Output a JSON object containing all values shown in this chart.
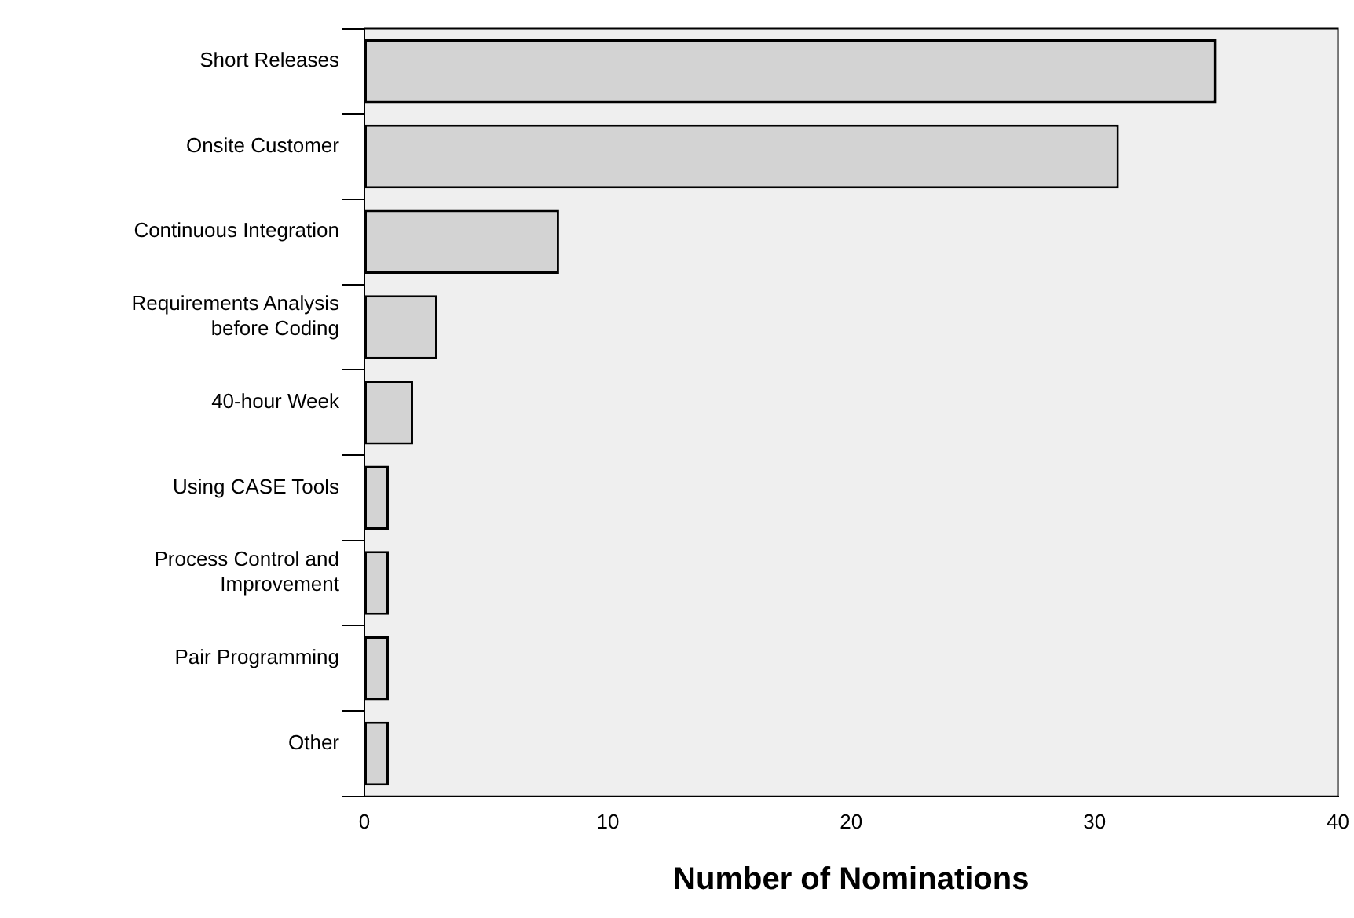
{
  "chart_data": {
    "type": "bar",
    "orientation": "horizontal",
    "xlabel": "Number of Nominations",
    "categories": [
      "Short Releases",
      "Onsite Customer",
      "Continuous Integration",
      "Requirements Analysis\nbefore Coding",
      "40-hour Week",
      "Using CASE Tools",
      "Process Control and\nImprovement",
      "Pair Programming",
      "Other"
    ],
    "values": [
      35,
      31,
      8,
      3,
      2,
      1,
      1,
      1,
      1
    ],
    "color": "#d3d3d3",
    "xlim": [
      0,
      40
    ],
    "xticks": [
      0,
      10,
      20,
      30,
      40
    ],
    "grid": false,
    "legend": false
  }
}
